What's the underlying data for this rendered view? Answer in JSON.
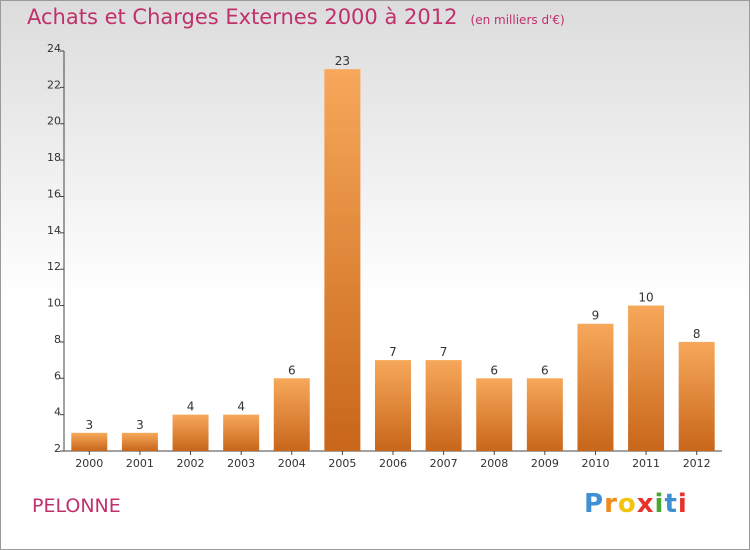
{
  "title": "Achats et Charges Externes 2000 à 2012",
  "subtitle": "(en milliers d'€)",
  "commune": "PELONNE",
  "brand": {
    "letters": [
      "P",
      "r",
      "o",
      "x",
      "i",
      "t",
      "i"
    ],
    "colors": [
      "#3f8fd4",
      "#f08a1c",
      "#f2c40f",
      "#e8322b",
      "#4aa832",
      "#3f8fd4",
      "#e8322b"
    ]
  },
  "colors": {
    "bar_top": "#f7a85a",
    "bar_bottom": "#c8661a",
    "text": "#c0306a"
  },
  "chart_data": {
    "type": "bar",
    "title": "Achats et Charges Externes 2000 à 2012",
    "subtitle": "(en milliers d'€)",
    "categories": [
      "2000",
      "2001",
      "2002",
      "2003",
      "2004",
      "2005",
      "2006",
      "2007",
      "2008",
      "2009",
      "2010",
      "2011",
      "2012"
    ],
    "values": [
      3,
      3,
      4,
      4,
      6,
      23,
      7,
      7,
      6,
      6,
      9,
      10,
      8
    ],
    "ylim": [
      2,
      24
    ],
    "yticks": [
      2,
      4,
      6,
      8,
      10,
      12,
      14,
      16,
      18,
      20,
      22,
      24
    ],
    "grid": false,
    "legend": "none",
    "data_labels": true
  }
}
